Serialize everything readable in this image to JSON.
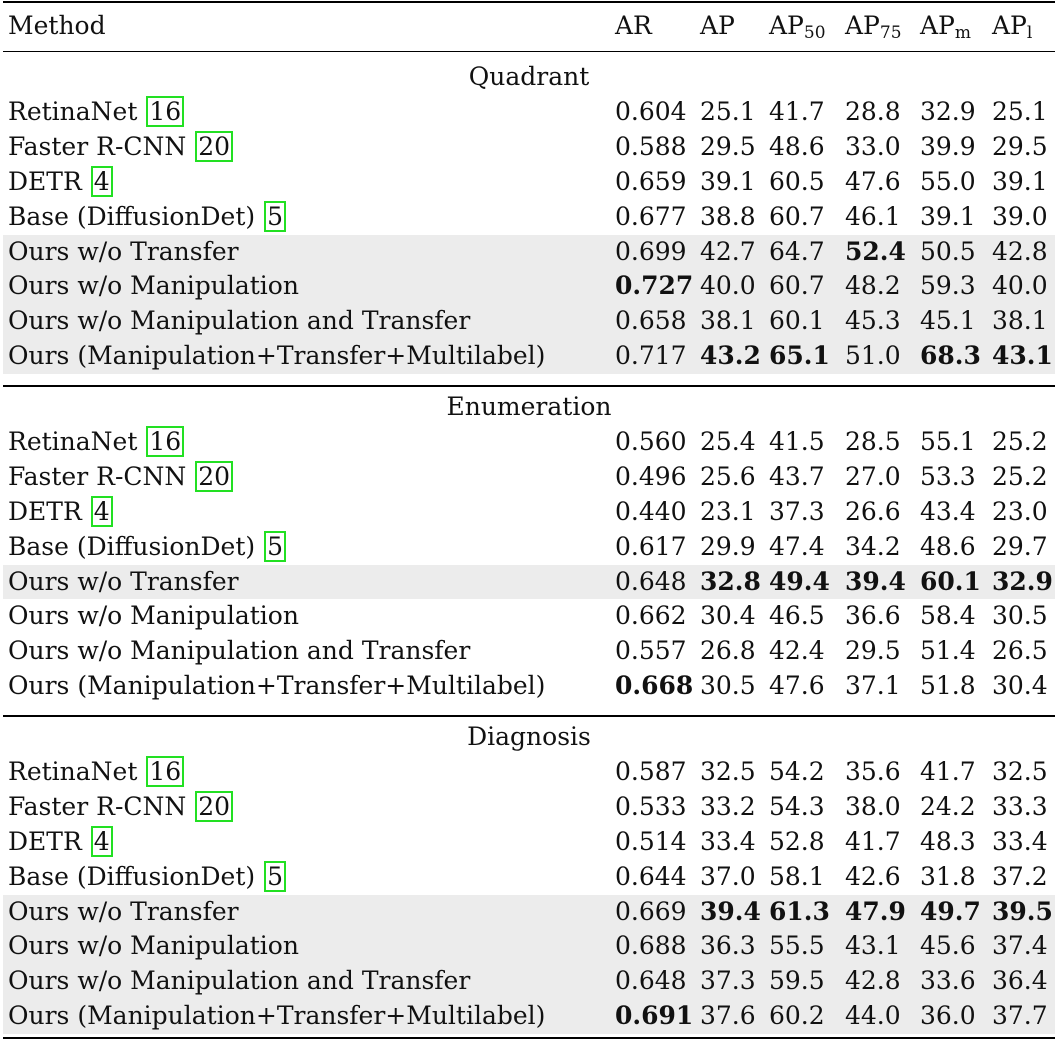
{
  "header": {
    "method": "Method",
    "ar": "AR",
    "ap": "AP",
    "ap50_base": "AP",
    "ap50_sub": "50",
    "ap75_base": "AP",
    "ap75_sub": "75",
    "apm_base": "AP",
    "apm_sub": "m",
    "apl_base": "AP",
    "apl_sub": "l"
  },
  "sections": [
    {
      "title": "Quadrant",
      "rows": [
        {
          "method": "RetinaNet ",
          "ref": "16",
          "ar": "0.604",
          "ap": "25.1",
          "ap50": "41.7",
          "ap75": "28.8",
          "apm": "32.9",
          "apl": "25.1",
          "shade": false,
          "bold": []
        },
        {
          "method": "Faster R-CNN ",
          "ref": "20",
          "ar": "0.588",
          "ap": "29.5",
          "ap50": "48.6",
          "ap75": "33.0",
          "apm": "39.9",
          "apl": "29.5",
          "shade": false,
          "bold": []
        },
        {
          "method": "DETR ",
          "ref": "4",
          "ar": "0.659",
          "ap": "39.1",
          "ap50": "60.5",
          "ap75": "47.6",
          "apm": "55.0",
          "apl": "39.1",
          "shade": false,
          "bold": []
        },
        {
          "method": "Base (DiffusionDet) ",
          "ref": "5",
          "ar": "0.677",
          "ap": "38.8",
          "ap50": "60.7",
          "ap75": "46.1",
          "apm": "39.1",
          "apl": "39.0",
          "shade": false,
          "bold": []
        },
        {
          "method": "Ours w/o Transfer",
          "ref": "",
          "ar": "0.699",
          "ap": "42.7",
          "ap50": "64.7",
          "ap75": "52.4",
          "apm": "50.5",
          "apl": "42.8",
          "shade": true,
          "bold": [
            "ap75"
          ]
        },
        {
          "method": "Ours w/o Manipulation",
          "ref": "",
          "ar": "0.727",
          "ap": "40.0",
          "ap50": "60.7",
          "ap75": "48.2",
          "apm": "59.3",
          "apl": "40.0",
          "shade": true,
          "bold": [
            "ar"
          ]
        },
        {
          "method": "Ours w/o Manipulation and Transfer",
          "ref": "",
          "ar": "0.658",
          "ap": "38.1",
          "ap50": "60.1",
          "ap75": "45.3",
          "apm": "45.1",
          "apl": "38.1",
          "shade": true,
          "bold": []
        },
        {
          "method": "Ours (Manipulation+Transfer+Multilabel)",
          "ref": "",
          "ar": "0.717",
          "ap": "43.2",
          "ap50": "65.1",
          "ap75": "51.0",
          "apm": "68.3",
          "apl": "43.1",
          "shade": true,
          "bold": [
            "ap",
            "ap50",
            "apm",
            "apl"
          ]
        }
      ]
    },
    {
      "title": "Enumeration",
      "rows": [
        {
          "method": "RetinaNet ",
          "ref": "16",
          "ar": "0.560",
          "ap": "25.4",
          "ap50": "41.5",
          "ap75": "28.5",
          "apm": "55.1",
          "apl": "25.2",
          "shade": false,
          "bold": []
        },
        {
          "method": "Faster R-CNN ",
          "ref": "20",
          "ar": "0.496",
          "ap": "25.6",
          "ap50": "43.7",
          "ap75": "27.0",
          "apm": "53.3",
          "apl": "25.2",
          "shade": false,
          "bold": []
        },
        {
          "method": "DETR ",
          "ref": "4",
          "ar": "0.440",
          "ap": "23.1",
          "ap50": "37.3",
          "ap75": "26.6",
          "apm": "43.4",
          "apl": "23.0",
          "shade": false,
          "bold": []
        },
        {
          "method": "Base (DiffusionDet) ",
          "ref": "5",
          "ar": "0.617",
          "ap": "29.9",
          "ap50": "47.4",
          "ap75": "34.2",
          "apm": "48.6",
          "apl": "29.7",
          "shade": false,
          "bold": []
        },
        {
          "method": "Ours w/o Transfer",
          "ref": "",
          "ar": "0.648",
          "ap": "32.8",
          "ap50": "49.4",
          "ap75": "39.4",
          "apm": "60.1",
          "apl": "32.9",
          "shade": true,
          "bold": [
            "ap",
            "ap50",
            "ap75",
            "apm",
            "apl"
          ]
        },
        {
          "method": "Ours w/o Manipulation",
          "ref": "",
          "ar": "0.662",
          "ap": "30.4",
          "ap50": "46.5",
          "ap75": "36.6",
          "apm": "58.4",
          "apl": "30.5",
          "shade": false,
          "bold": []
        },
        {
          "method": "Ours w/o Manipulation and Transfer",
          "ref": "",
          "ar": "0.557",
          "ap": "26.8",
          "ap50": "42.4",
          "ap75": "29.5",
          "apm": "51.4",
          "apl": "26.5",
          "shade": false,
          "bold": []
        },
        {
          "method": "Ours (Manipulation+Transfer+Multilabel)",
          "ref": "",
          "ar": "0.668",
          "ap": "30.5",
          "ap50": "47.6",
          "ap75": "37.1",
          "apm": "51.8",
          "apl": "30.4",
          "shade": false,
          "bold": [
            "ar"
          ]
        }
      ]
    },
    {
      "title": "Diagnosis",
      "rows": [
        {
          "method": "RetinaNet ",
          "ref": "16",
          "ar": "0.587",
          "ap": "32.5",
          "ap50": "54.2",
          "ap75": "35.6",
          "apm": "41.7",
          "apl": "32.5",
          "shade": false,
          "bold": []
        },
        {
          "method": "Faster R-CNN ",
          "ref": "20",
          "ar": "0.533",
          "ap": "33.2",
          "ap50": "54.3",
          "ap75": "38.0",
          "apm": "24.2",
          "apl": "33.3",
          "shade": false,
          "bold": []
        },
        {
          "method": "DETR ",
          "ref": "4",
          "ar": "0.514",
          "ap": "33.4",
          "ap50": "52.8",
          "ap75": "41.7",
          "apm": "48.3",
          "apl": "33.4",
          "shade": false,
          "bold": []
        },
        {
          "method": "Base (DiffusionDet) ",
          "ref": "5",
          "ar": "0.644",
          "ap": "37.0",
          "ap50": "58.1",
          "ap75": "42.6",
          "apm": "31.8",
          "apl": "37.2",
          "shade": false,
          "bold": []
        },
        {
          "method": "Ours w/o Transfer",
          "ref": "",
          "ar": "0.669",
          "ap": "39.4",
          "ap50": "61.3",
          "ap75": "47.9",
          "apm": "49.7",
          "apl": "39.5",
          "shade": true,
          "bold": [
            "ap",
            "ap50",
            "ap75",
            "apm",
            "apl"
          ]
        },
        {
          "method": "Ours w/o Manipulation",
          "ref": "",
          "ar": "0.688",
          "ap": "36.3",
          "ap50": "55.5",
          "ap75": "43.1",
          "apm": "45.6",
          "apl": "37.4",
          "shade": true,
          "bold": []
        },
        {
          "method": "Ours w/o Manipulation and Transfer",
          "ref": "",
          "ar": "0.648",
          "ap": "37.3",
          "ap50": "59.5",
          "ap75": "42.8",
          "apm": "33.6",
          "apl": "36.4",
          "shade": true,
          "bold": []
        },
        {
          "method": "Ours (Manipulation+Transfer+Multilabel)",
          "ref": "",
          "ar": "0.691",
          "ap": "37.6",
          "ap50": "60.2",
          "ap75": "44.0",
          "apm": "36.0",
          "apl": "37.7",
          "shade": true,
          "bold": [
            "ar"
          ]
        }
      ]
    }
  ]
}
